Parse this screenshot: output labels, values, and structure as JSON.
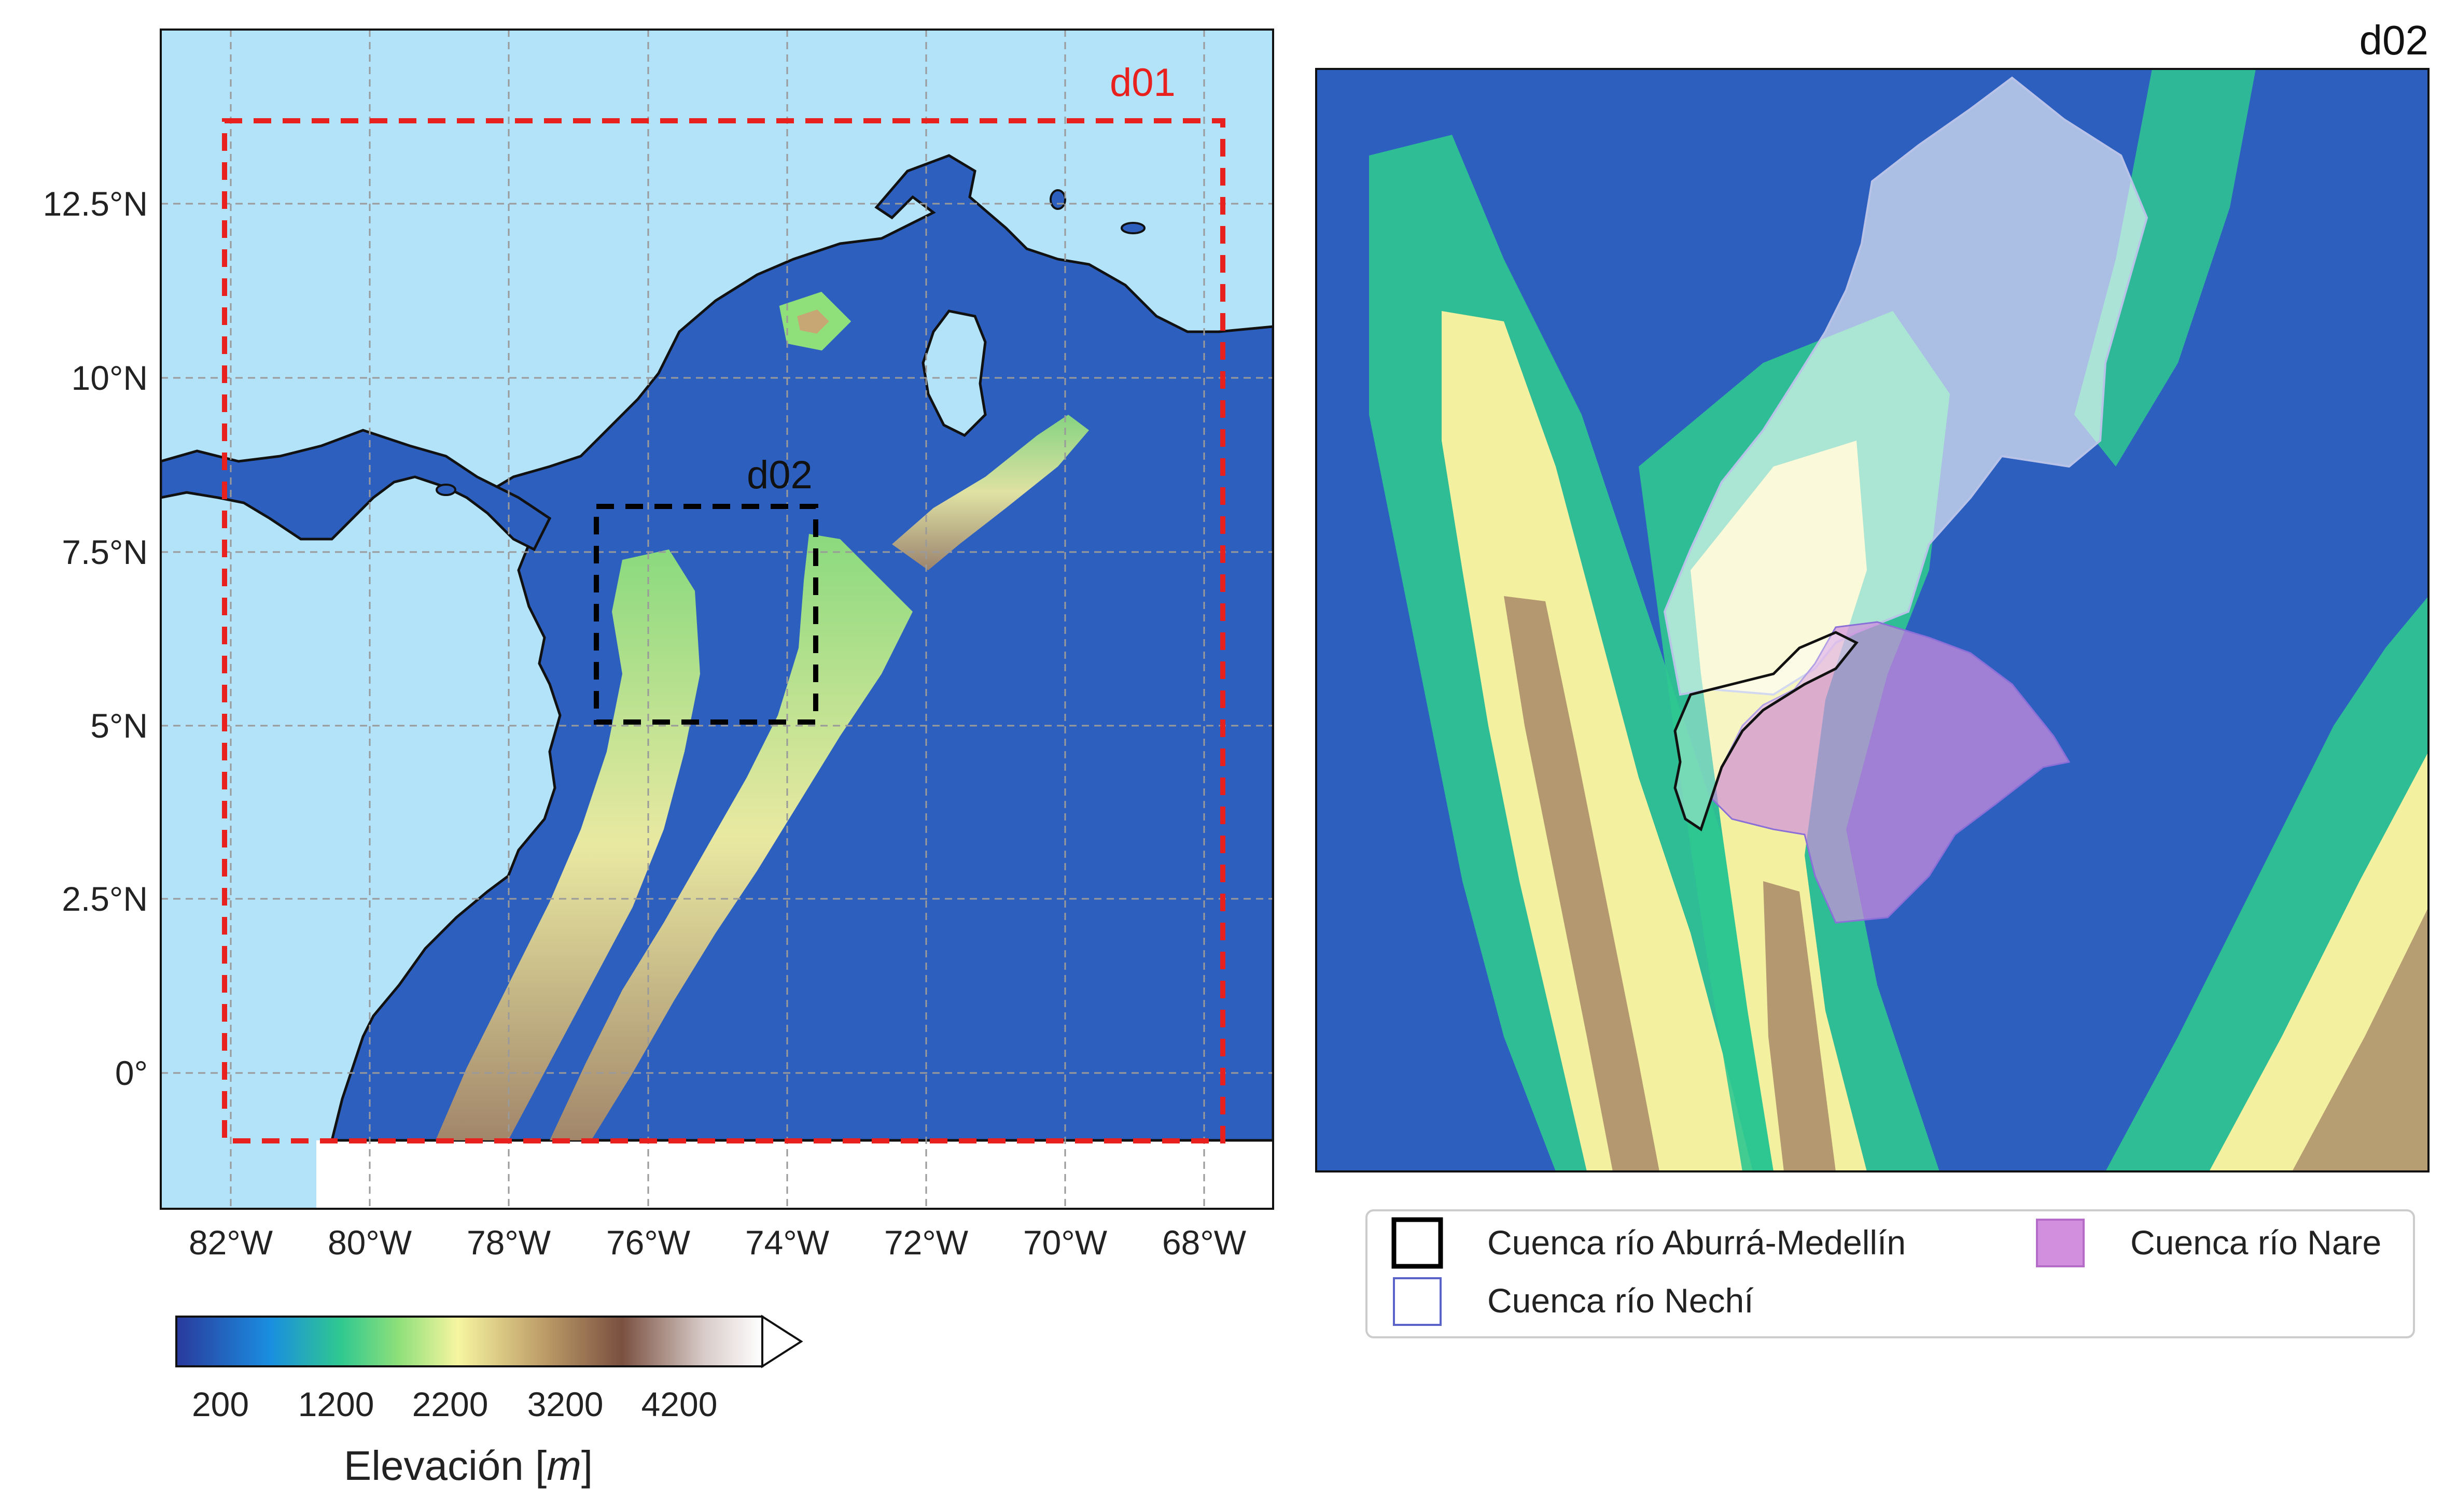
{
  "left_map": {
    "lat_labels": [
      "12.5°N",
      "10°N",
      "7.5°N",
      "5°N",
      "2.5°N",
      "0°"
    ],
    "lon_labels": [
      "82°W",
      "80°W",
      "78°W",
      "76°W",
      "74°W",
      "72°W",
      "70°W",
      "68°W"
    ],
    "domain_d01_label": "d01",
    "domain_d02_label": "d02"
  },
  "right_map": {
    "title": "d02"
  },
  "colorbar": {
    "ticks": [
      "200",
      "1200",
      "2200",
      "3200",
      "4200"
    ],
    "label": "Elevación [m]",
    "label_text": "Elevación [",
    "label_unit": "m",
    "label_close": "]"
  },
  "legend": {
    "items": [
      {
        "label": "Cuenca río Aburrá-Medellín",
        "color": "#000000"
      },
      {
        "label": "Cuenca río Nechí",
        "color": "#5a64c8"
      },
      {
        "label": "Cuenca río Nare",
        "color": "#d18fde"
      }
    ]
  },
  "colors": {
    "sea": "#b3e3f8",
    "lowland": "#2d5fbf",
    "d01_box": "#e8201e",
    "d02_box": "#000000"
  }
}
